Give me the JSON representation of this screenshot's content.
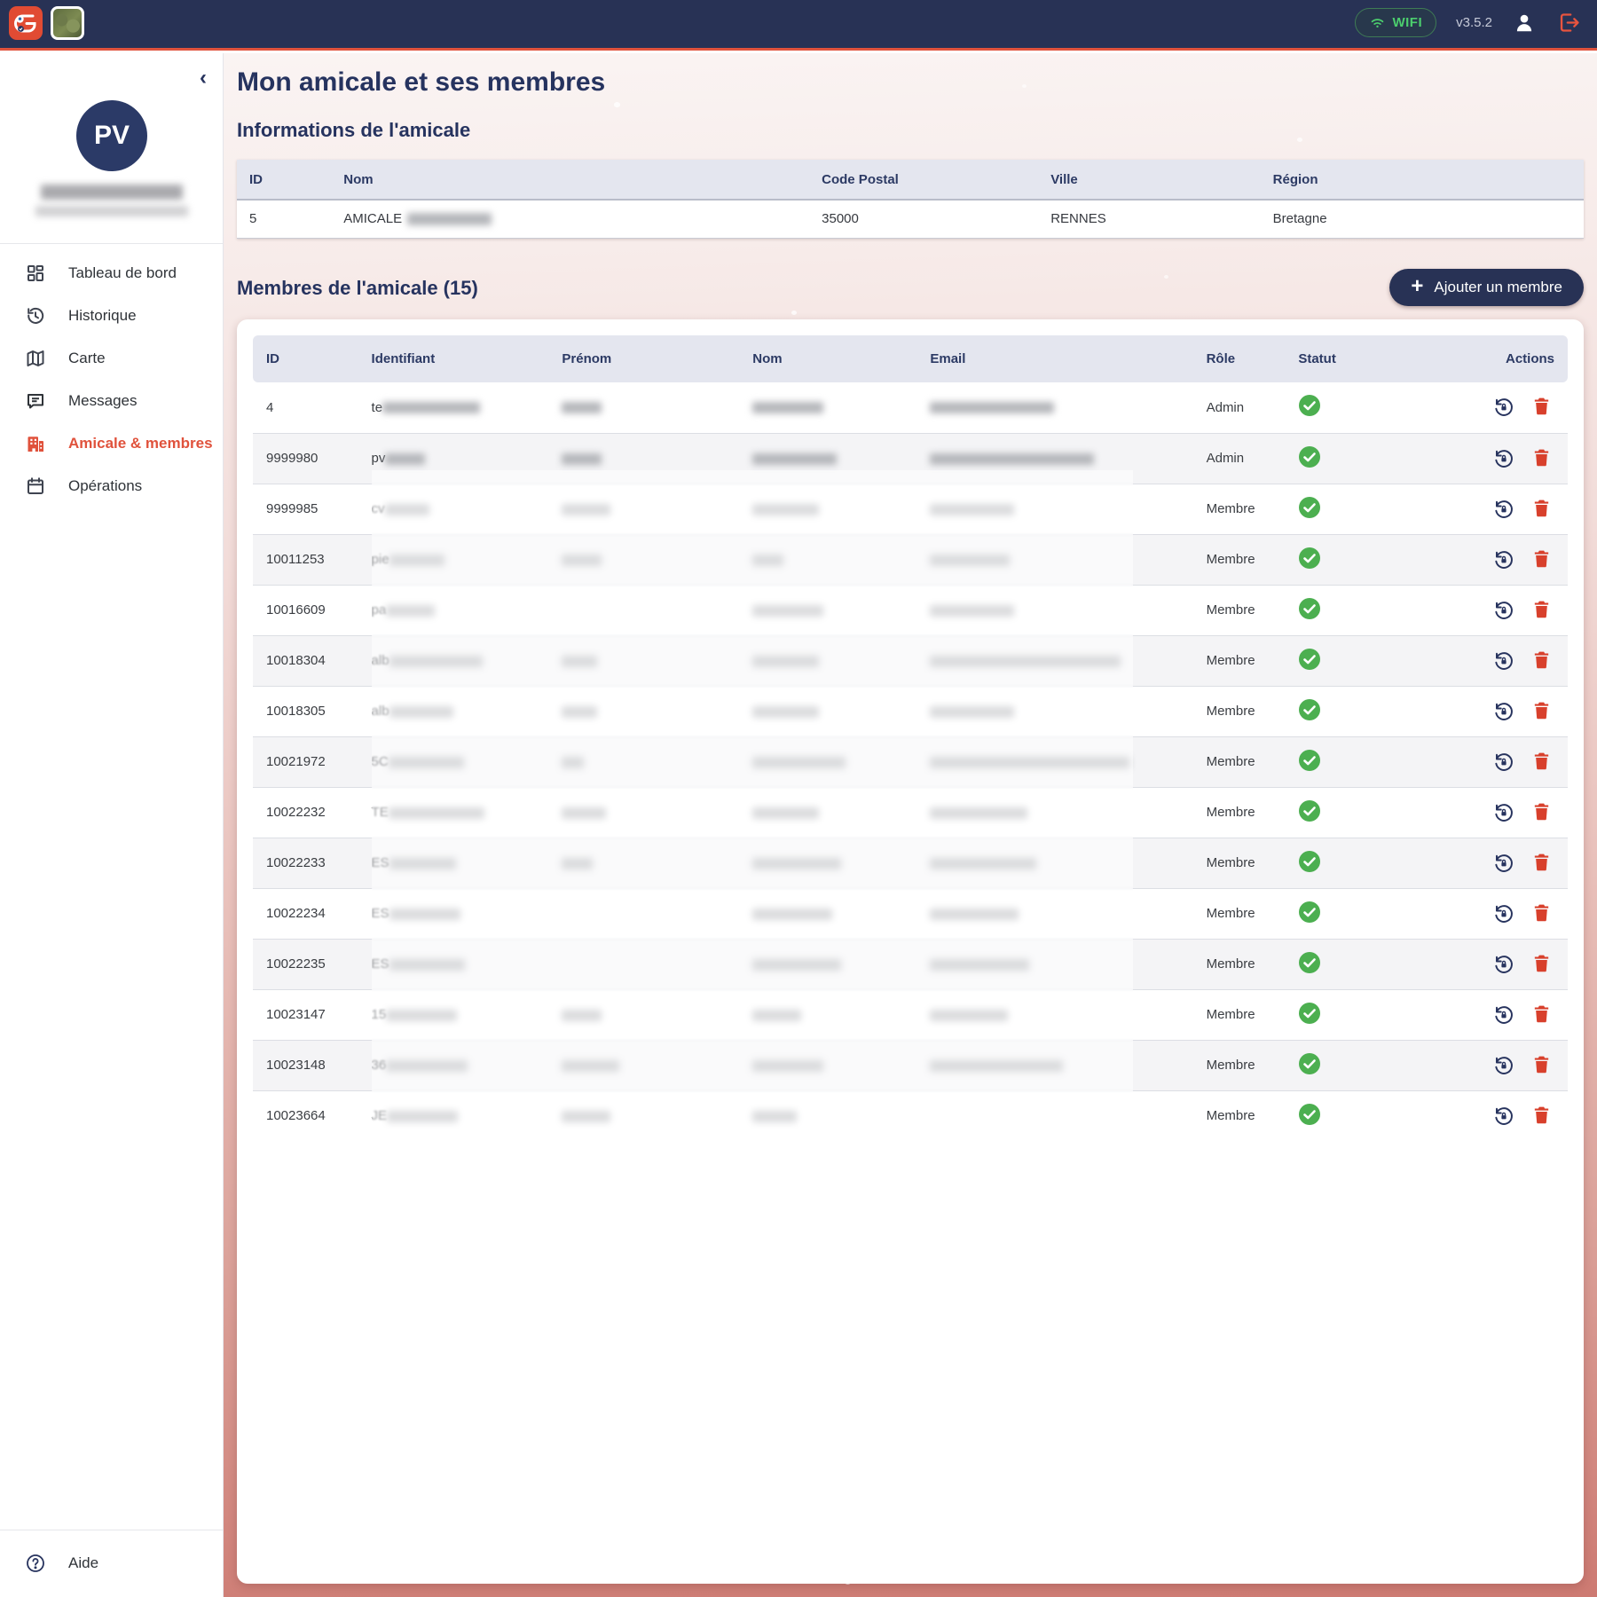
{
  "topbar": {
    "wifi_label": "WIFI",
    "version": "v3.5.2"
  },
  "sidebar": {
    "avatar_initials": "PV",
    "items": [
      {
        "label": "Tableau de bord",
        "active": false
      },
      {
        "label": "Historique",
        "active": false
      },
      {
        "label": "Carte",
        "active": false
      },
      {
        "label": "Messages",
        "active": false
      },
      {
        "label": "Amicale & membres",
        "active": true
      },
      {
        "label": "Opérations",
        "active": false
      }
    ],
    "help_label": "Aide"
  },
  "page": {
    "title": "Mon amicale et ses membres",
    "info_section_title": "Informations de l'amicale",
    "members_section_title": "Membres de l'amicale (15)",
    "add_member_label": "Ajouter un membre"
  },
  "info_table": {
    "headers": [
      "ID",
      "Nom",
      "Code Postal",
      "Ville",
      "Région"
    ],
    "row": {
      "id": "5",
      "nom_prefix": "AMICALE",
      "code_postal": "35000",
      "ville": "RENNES",
      "region": "Bretagne"
    }
  },
  "members_table": {
    "headers": [
      "ID",
      "Identifiant",
      "Prénom",
      "Nom",
      "Email",
      "Rôle",
      "Statut",
      "Actions"
    ],
    "status_ok_color": "#4caf50",
    "rows": [
      {
        "id": "4",
        "identifiant_prefix": "te",
        "role": "Admin",
        "status": "ok",
        "blur": {
          "identifiant": 110,
          "prenom": 45,
          "nom": 80,
          "email": 140
        }
      },
      {
        "id": "9999980",
        "identifiant_prefix": "pv",
        "role": "Admin",
        "status": "ok",
        "blur": {
          "identifiant": 45,
          "prenom": 45,
          "nom": 95,
          "email": 185
        }
      },
      {
        "id": "9999985",
        "identifiant_prefix": "cv",
        "role": "Membre",
        "status": "ok",
        "blur": {
          "identifiant": 50,
          "prenom": 55,
          "nom": 75,
          "email": 95
        }
      },
      {
        "id": "10011253",
        "identifiant_prefix": "pie",
        "role": "Membre",
        "status": "ok",
        "blur": {
          "identifiant": 62,
          "prenom": 45,
          "nom": 35,
          "email": 90
        }
      },
      {
        "id": "10016609",
        "identifiant_prefix": "pa",
        "role": "Membre",
        "status": "ok",
        "blur": {
          "identifiant": 55,
          "prenom": 0,
          "nom": 80,
          "email": 95
        }
      },
      {
        "id": "10018304",
        "identifiant_prefix": "alb",
        "role": "Membre",
        "status": "ok",
        "blur": {
          "identifiant": 105,
          "prenom": 40,
          "nom": 75,
          "email": 215
        }
      },
      {
        "id": "10018305",
        "identifiant_prefix": "alb",
        "role": "Membre",
        "status": "ok",
        "blur": {
          "identifiant": 72,
          "prenom": 40,
          "nom": 75,
          "email": 95
        }
      },
      {
        "id": "10021972",
        "identifiant_prefix": "5C",
        "role": "Membre",
        "status": "ok",
        "blur": {
          "identifiant": 85,
          "prenom": 25,
          "nom": 105,
          "email": 225
        }
      },
      {
        "id": "10022232",
        "identifiant_prefix": "TE",
        "role": "Membre",
        "status": "ok",
        "blur": {
          "identifiant": 108,
          "prenom": 50,
          "nom": 75,
          "email": 110
        }
      },
      {
        "id": "10022233",
        "identifiant_prefix": "ES",
        "role": "Membre",
        "status": "ok",
        "blur": {
          "identifiant": 75,
          "prenom": 35,
          "nom": 100,
          "email": 120
        }
      },
      {
        "id": "10022234",
        "identifiant_prefix": "ES",
        "role": "Membre",
        "status": "ok",
        "blur": {
          "identifiant": 80,
          "prenom": 0,
          "nom": 90,
          "email": 100
        }
      },
      {
        "id": "10022235",
        "identifiant_prefix": "ES",
        "role": "Membre",
        "status": "ok",
        "blur": {
          "identifiant": 85,
          "prenom": 0,
          "nom": 100,
          "email": 112
        }
      },
      {
        "id": "10023147",
        "identifiant_prefix": "15",
        "role": "Membre",
        "status": "ok",
        "blur": {
          "identifiant": 80,
          "prenom": 45,
          "nom": 55,
          "email": 88
        }
      },
      {
        "id": "10023148",
        "identifiant_prefix": "36",
        "role": "Membre",
        "status": "ok",
        "blur": {
          "identifiant": 92,
          "prenom": 65,
          "nom": 80,
          "email": 150
        }
      },
      {
        "id": "10023664",
        "identifiant_prefix": "JE",
        "role": "Membre",
        "status": "ok",
        "blur": {
          "identifiant": 80,
          "prenom": 55,
          "nom": 50,
          "email": 0
        }
      }
    ]
  },
  "colors": {
    "topbar_bg": "#283255",
    "accent_red": "#e0523c",
    "navy_text": "#26335f",
    "status_green": "#4caf50",
    "trash_red": "#d8402c",
    "gradient_bottom": "#cd7a72",
    "wifi_green": "#4ccf6e"
  }
}
